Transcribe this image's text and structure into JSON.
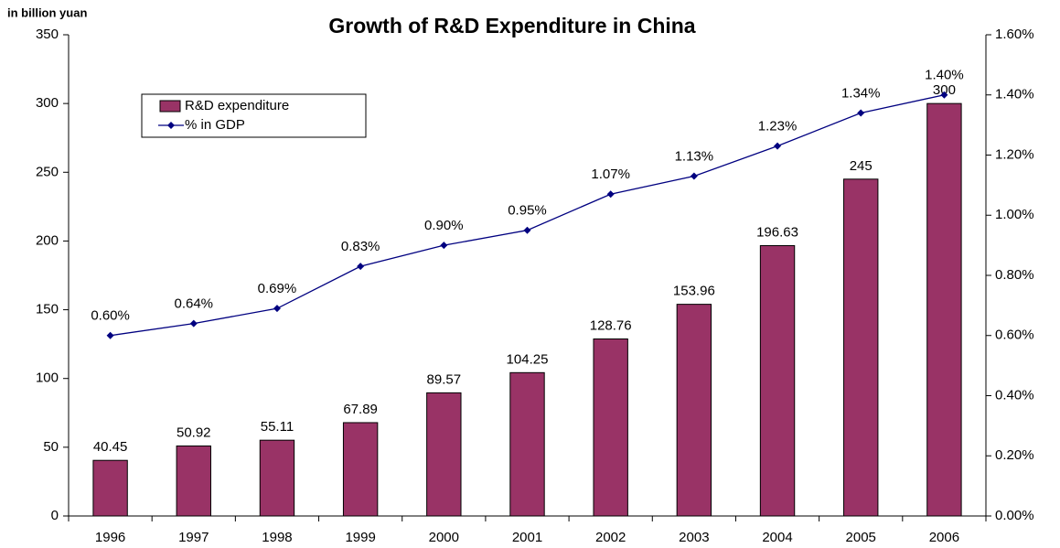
{
  "chart_data": {
    "type": "combo",
    "title": "Growth of R&D Expenditure in China",
    "y_label": "in billion yuan",
    "categories": [
      "1996",
      "1997",
      "1998",
      "1999",
      "2000",
      "2001",
      "2002",
      "2003",
      "2004",
      "2005",
      "2006"
    ],
    "series": [
      {
        "name": "R&D expenditure",
        "type": "bar",
        "color": "#993366",
        "values": [
          40.45,
          50.92,
          55.11,
          67.89,
          89.57,
          104.25,
          128.76,
          153.96,
          196.63,
          245,
          300
        ]
      },
      {
        "name": "% in GDP",
        "type": "line",
        "axis": "y2",
        "color": "#000080",
        "values": [
          0.6,
          0.64,
          0.69,
          0.83,
          0.9,
          0.95,
          1.07,
          1.13,
          1.23,
          1.34,
          1.4
        ],
        "value_labels": [
          "0.60%",
          "0.64%",
          "0.69%",
          "0.83%",
          "0.90%",
          "0.95%",
          "1.07%",
          "1.13%",
          "1.23%",
          "1.34%",
          "1.40%"
        ]
      }
    ],
    "ylim": [
      0,
      350
    ],
    "yticks": [
      0,
      50,
      100,
      150,
      200,
      250,
      300,
      350
    ],
    "y2lim": [
      0,
      1.6
    ],
    "y2ticks": [
      {
        "value": 0,
        "label": "0.00%"
      },
      {
        "value": 0.2,
        "label": "0.20%"
      },
      {
        "value": 0.4,
        "label": "0.40%"
      },
      {
        "value": 0.6,
        "label": "0.60%"
      },
      {
        "value": 0.8,
        "label": "0.80%"
      },
      {
        "value": 1.0,
        "label": "1.00%"
      },
      {
        "value": 1.2,
        "label": "1.20%"
      },
      {
        "value": 1.4,
        "label": "1.40%"
      },
      {
        "value": 1.6,
        "label": "1.60%"
      }
    ],
    "grid": false,
    "legend": "upper left"
  }
}
